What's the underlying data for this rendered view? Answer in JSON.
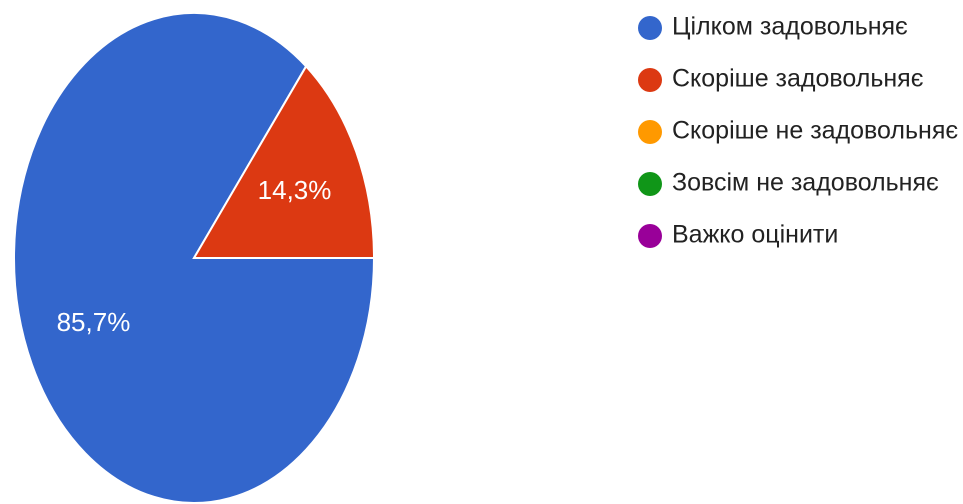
{
  "chart_data": {
    "type": "pie",
    "categories": [
      "Цілком задовольняє",
      "Скоріше задовольняє",
      "Скоріше не задовольняє",
      "Зовсім не задовольняє",
      "Важко оцінити"
    ],
    "values": [
      85.7,
      14.3,
      0,
      0,
      0
    ],
    "labels": [
      "85,7%",
      "14,3%",
      "",
      "",
      ""
    ],
    "colors": [
      "#3366cc",
      "#dc3912",
      "#ff9900",
      "#109618",
      "#990099"
    ],
    "legend": "right",
    "start_angle_deg": 0,
    "direction": "clockwise"
  }
}
